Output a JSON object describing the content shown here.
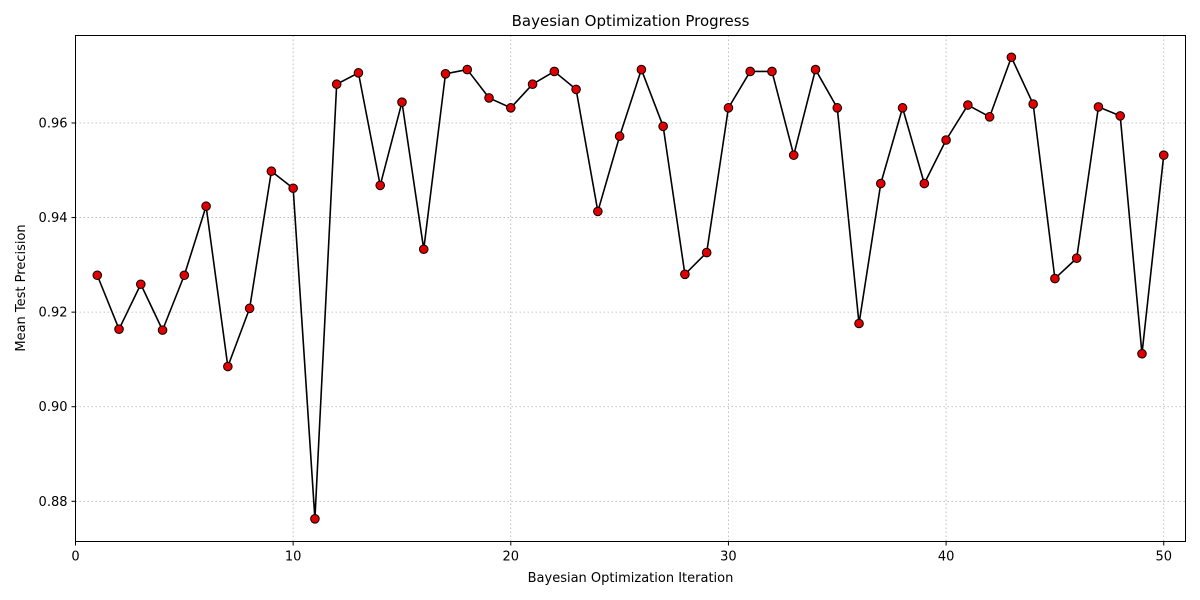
{
  "chart_data": {
    "type": "line",
    "title": "Bayesian Optimization Progress",
    "xlabel": "Bayesian Optimization Iteration",
    "ylabel": "Mean Test Precision",
    "xlim": [
      0,
      51
    ],
    "ylim": [
      0.8715,
      0.9785
    ],
    "xticks": [
      0,
      10,
      20,
      30,
      40,
      50
    ],
    "yticks": [
      0.88,
      0.9,
      0.92,
      0.94,
      0.96
    ],
    "ytick_labels": [
      "0.88",
      "0.90",
      "0.92",
      "0.94",
      "0.96"
    ],
    "xtick_labels": [
      "0",
      "10",
      "20",
      "30",
      "40",
      "50"
    ],
    "grid": true,
    "line_color": "#000000",
    "marker_color": "#e00000",
    "marker_edge_color": "#000000",
    "x": [
      1,
      2,
      3,
      4,
      5,
      6,
      7,
      8,
      9,
      10,
      11,
      12,
      13,
      14,
      15,
      16,
      17,
      18,
      19,
      20,
      21,
      22,
      23,
      24,
      25,
      26,
      27,
      28,
      29,
      30,
      31,
      32,
      33,
      34,
      35,
      36,
      37,
      38,
      39,
      40,
      41,
      42,
      43,
      44,
      45,
      46,
      47,
      48,
      49,
      50
    ],
    "y": [
      0.9278,
      0.9164,
      0.9259,
      0.9162,
      0.9278,
      0.9424,
      0.9085,
      0.9208,
      0.9498,
      0.9462,
      0.8763,
      0.9682,
      0.9706,
      0.9468,
      0.9644,
      0.9333,
      0.9704,
      0.9713,
      0.9653,
      0.9632,
      0.9682,
      0.9709,
      0.9671,
      0.9413,
      0.9572,
      0.9713,
      0.9593,
      0.928,
      0.9326,
      0.9632,
      0.9709,
      0.9709,
      0.9532,
      0.9713,
      0.9632,
      0.9176,
      0.9472,
      0.9632,
      0.9472,
      0.9564,
      0.9638,
      0.9613,
      0.9739,
      0.964,
      0.9271,
      0.9314,
      0.9634,
      0.9615,
      0.9112,
      0.9532
    ]
  }
}
